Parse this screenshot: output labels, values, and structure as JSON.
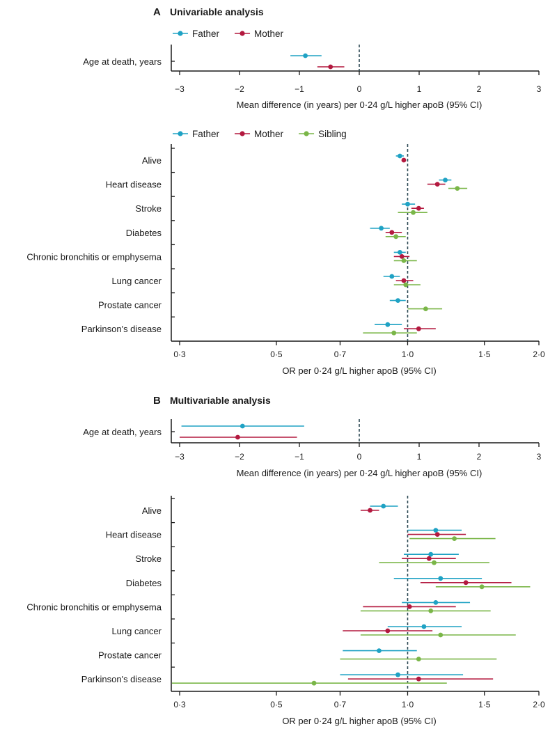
{
  "colors": {
    "father": "#1fa2c4",
    "mother": "#b3193f",
    "sibling": "#7ab648",
    "axis": "#1a1a1a",
    "ref": "#2e4a55"
  },
  "chart_data": [
    {
      "panel": "A",
      "panel_title": "Univariable analysis",
      "type": "forest-mean-difference",
      "legend": [
        "Father",
        "Mother"
      ],
      "xlim": [
        -3,
        3
      ],
      "xticks": [
        "−3",
        "−2",
        "−1",
        "0",
        "1",
        "2",
        "3"
      ],
      "xlabel": "Mean difference (in years) per 0·24 g/L higher apoB (95% CI)",
      "rows": [
        {
          "label": "Age at death, years",
          "father": {
            "est": -0.9,
            "lo": -1.15,
            "hi": -0.63
          },
          "mother": {
            "est": -0.48,
            "lo": -0.7,
            "hi": -0.25
          }
        }
      ]
    },
    {
      "panel": "A",
      "type": "forest-odds-ratio",
      "legend": [
        "Father",
        "Mother",
        "Sibling"
      ],
      "xlim": [
        0.28,
        2.0
      ],
      "xscale": "log",
      "xticks": [
        "0·3",
        "0·5",
        "0·7",
        "1·0",
        "1·5",
        "2·0"
      ],
      "xlabel": "OR per 0·24 g/L higher apoB (95% CI)",
      "rows": [
        {
          "label": "Alive",
          "father": {
            "est": 0.96,
            "lo": 0.94,
            "hi": 0.98
          },
          "mother": {
            "est": 0.98,
            "lo": 0.97,
            "hi": 0.99
          }
        },
        {
          "label": "Heart disease",
          "father": {
            "est": 1.22,
            "lo": 1.18,
            "hi": 1.26
          },
          "mother": {
            "est": 1.17,
            "lo": 1.11,
            "hi": 1.22
          },
          "sibling": {
            "est": 1.3,
            "lo": 1.24,
            "hi": 1.37
          }
        },
        {
          "label": "Stroke",
          "father": {
            "est": 1.0,
            "lo": 0.97,
            "hi": 1.04
          },
          "mother": {
            "est": 1.06,
            "lo": 1.02,
            "hi": 1.09
          },
          "sibling": {
            "est": 1.03,
            "lo": 0.95,
            "hi": 1.11
          }
        },
        {
          "label": "Diabetes",
          "father": {
            "est": 0.87,
            "lo": 0.82,
            "hi": 0.91
          },
          "mother": {
            "est": 0.92,
            "lo": 0.89,
            "hi": 0.97
          },
          "sibling": {
            "est": 0.94,
            "lo": 0.89,
            "hi": 0.99
          }
        },
        {
          "label": "Chronic bronchitis or emphysema",
          "father": {
            "est": 0.96,
            "lo": 0.93,
            "hi": 0.99
          },
          "mother": {
            "est": 0.97,
            "lo": 0.93,
            "hi": 1.01
          },
          "sibling": {
            "est": 0.98,
            "lo": 0.93,
            "hi": 1.05
          }
        },
        {
          "label": "Lung cancer",
          "father": {
            "est": 0.92,
            "lo": 0.88,
            "hi": 0.96
          },
          "mother": {
            "est": 0.98,
            "lo": 0.94,
            "hi": 1.03
          },
          "sibling": {
            "est": 0.99,
            "lo": 0.93,
            "hi": 1.07
          }
        },
        {
          "label": "Prostate cancer",
          "father": {
            "est": 0.95,
            "lo": 0.91,
            "hi": 0.99
          },
          "sibling": {
            "est": 1.1,
            "lo": 1.0,
            "hi": 1.2
          }
        },
        {
          "label": "Parkinson's disease",
          "father": {
            "est": 0.9,
            "lo": 0.84,
            "hi": 0.97
          },
          "mother": {
            "est": 1.06,
            "lo": 0.98,
            "hi": 1.16
          },
          "sibling": {
            "est": 0.93,
            "lo": 0.79,
            "hi": 1.05
          }
        }
      ]
    },
    {
      "panel": "B",
      "panel_title": "Multivariable analysis",
      "type": "forest-mean-difference",
      "xlim": [
        -3,
        3
      ],
      "xticks": [
        "−3",
        "−2",
        "−1",
        "0",
        "1",
        "2",
        "3"
      ],
      "xlabel": "Mean difference (in years) per 0·24 g/L higher apoB (95% CI)",
      "rows": [
        {
          "label": "Age at death, years",
          "father": {
            "est": -1.95,
            "lo": -2.97,
            "hi": -0.92
          },
          "mother": {
            "est": -2.03,
            "lo": -3.0,
            "hi": -1.04
          }
        }
      ]
    },
    {
      "panel": "B",
      "type": "forest-odds-ratio",
      "xlim": [
        0.28,
        2.0
      ],
      "xscale": "log",
      "xticks": [
        "0·3",
        "0·5",
        "0·7",
        "1·0",
        "1·5",
        "2·0"
      ],
      "xlabel": "OR per 0·24 g/L higher apoB (95% CI)",
      "rows": [
        {
          "label": "Alive",
          "father": {
            "est": 0.88,
            "lo": 0.82,
            "hi": 0.95
          },
          "mother": {
            "est": 0.82,
            "lo": 0.78,
            "hi": 0.86
          }
        },
        {
          "label": "Heart disease",
          "father": {
            "est": 1.16,
            "lo": 1.0,
            "hi": 1.33
          },
          "mother": {
            "est": 1.17,
            "lo": 1.0,
            "hi": 1.36
          },
          "sibling": {
            "est": 1.28,
            "lo": 1.01,
            "hi": 1.59
          }
        },
        {
          "label": "Stroke",
          "father": {
            "est": 1.13,
            "lo": 0.98,
            "hi": 1.31
          },
          "mother": {
            "est": 1.12,
            "lo": 0.97,
            "hi": 1.29
          },
          "sibling": {
            "est": 1.15,
            "lo": 0.86,
            "hi": 1.54
          }
        },
        {
          "label": "Diabetes",
          "father": {
            "est": 1.19,
            "lo": 0.93,
            "hi": 1.48
          },
          "mother": {
            "est": 1.36,
            "lo": 1.07,
            "hi": 1.73
          },
          "sibling": {
            "est": 1.48,
            "lo": 1.16,
            "hi": 1.91
          }
        },
        {
          "label": "Chronic bronchitis or emphysema",
          "father": {
            "est": 1.16,
            "lo": 0.97,
            "hi": 1.39
          },
          "mother": {
            "est": 1.01,
            "lo": 0.79,
            "hi": 1.29
          },
          "sibling": {
            "est": 1.13,
            "lo": 0.78,
            "hi": 1.55
          }
        },
        {
          "label": "Lung cancer",
          "father": {
            "est": 1.09,
            "lo": 0.9,
            "hi": 1.33
          },
          "mother": {
            "est": 0.9,
            "lo": 0.71,
            "hi": 1.14
          },
          "sibling": {
            "est": 1.19,
            "lo": 0.78,
            "hi": 1.77
          }
        },
        {
          "label": "Prostate cancer",
          "father": {
            "est": 0.86,
            "lo": 0.71,
            "hi": 1.05
          },
          "sibling": {
            "est": 1.06,
            "lo": 0.7,
            "hi": 1.6
          }
        },
        {
          "label": "Parkinson's disease",
          "father": {
            "est": 0.95,
            "lo": 0.7,
            "hi": 1.34
          },
          "mother": {
            "est": 1.06,
            "lo": 0.73,
            "hi": 1.57
          },
          "sibling": {
            "est": 0.61,
            "lo": 0.28,
            "hi": 1.23
          }
        }
      ]
    }
  ]
}
